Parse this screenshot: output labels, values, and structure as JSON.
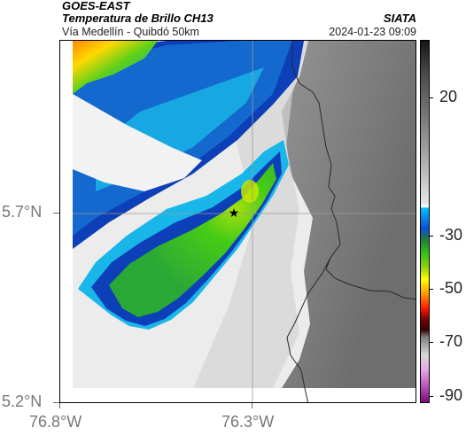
{
  "header": {
    "satellite": "GOES-EAST",
    "product": "Temperatura de Brillo CH13",
    "region": "Vía Medellín - Quibdó 50km",
    "agency": "SIATA",
    "datetime": "2024-01-23 09:09"
  },
  "map": {
    "marker": "star-icon",
    "lat_ticks": [
      "5.7°N",
      "5.2°N"
    ],
    "lon_ticks": [
      "76.8°W",
      "76.3°W"
    ],
    "gridlines": true,
    "colors": {
      "cold_cloud_green": "#3cc81e",
      "deep_blue": "#0a3fb8",
      "cyan": "#18b4e8",
      "warm_gray": "#8c8c8c",
      "border_line": "#2a2a2a"
    }
  },
  "colorbar": {
    "unit_scale": "brightness temperature",
    "tick_labels": [
      "20",
      "-30",
      "-50",
      "-70",
      "-90"
    ]
  }
}
